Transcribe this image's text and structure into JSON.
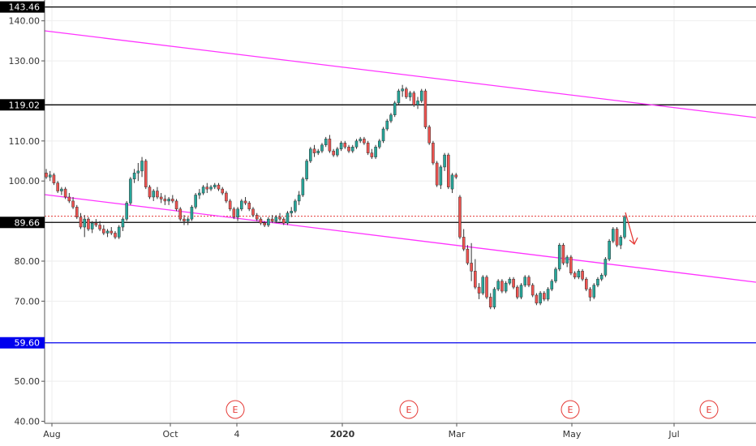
{
  "chart_data": {
    "type": "candlestick",
    "ylim": [
      39.5,
      145.2
    ],
    "yticks": [
      {
        "value": 140,
        "label": "140.00"
      },
      {
        "value": 130,
        "label": "130.00"
      },
      {
        "value": 110,
        "label": "110.00"
      },
      {
        "value": 100,
        "label": "100.00"
      },
      {
        "value": 80,
        "label": "80.00"
      },
      {
        "value": 70,
        "label": "70.00"
      },
      {
        "value": 50,
        "label": "50.00"
      },
      {
        "value": 40,
        "label": "40.00"
      }
    ],
    "xticks": [
      {
        "label": "Aug",
        "bold": false
      },
      {
        "label": "Oct",
        "bold": false
      },
      {
        "label": "4",
        "bold": false
      },
      {
        "label": "2020",
        "bold": true
      },
      {
        "label": "Mar",
        "bold": false
      },
      {
        "label": "May",
        "bold": false
      },
      {
        "label": "Jul",
        "bold": false
      }
    ],
    "horizontal_levels": [
      {
        "value": 143.46,
        "label": "143.46",
        "color": "#000000"
      },
      {
        "value": 119.02,
        "label": "119.02",
        "color": "#000000"
      },
      {
        "value": 89.66,
        "label": "89.66",
        "color": "#000000"
      },
      {
        "value": 59.6,
        "label": "59.60",
        "color": "#0000ee"
      }
    ],
    "last_price_line": {
      "value": 91.2,
      "color": "#e53935"
    },
    "colors": {
      "up": "#26a69a",
      "down": "#ef5350",
      "wick": "#333333",
      "trend": "#ff33ff",
      "earnings": "#e53935",
      "grid": "#eeeeee"
    },
    "earnings_markers": [
      "E",
      "E",
      "E",
      "E"
    ],
    "ohlc": [
      [
        102.0,
        103.0,
        100.5,
        101.0
      ],
      [
        101.0,
        102.5,
        100.0,
        101.5
      ],
      [
        101.5,
        102.0,
        99.0,
        99.5
      ],
      [
        99.5,
        100.0,
        97.0,
        97.5
      ],
      [
        97.5,
        98.5,
        96.5,
        98.0
      ],
      [
        98.0,
        98.5,
        95.5,
        96.0
      ],
      [
        96.0,
        97.0,
        94.5,
        95.0
      ],
      [
        95.0,
        96.0,
        93.0,
        93.5
      ],
      [
        93.5,
        94.0,
        90.5,
        91.0
      ],
      [
        91.0,
        92.0,
        88.0,
        88.5
      ],
      [
        88.5,
        91.5,
        86.0,
        90.5
      ],
      [
        90.5,
        91.0,
        87.5,
        88.0
      ],
      [
        88.0,
        90.0,
        87.0,
        89.5
      ],
      [
        89.5,
        90.5,
        88.5,
        89.0
      ],
      [
        89.0,
        90.0,
        87.5,
        88.0
      ],
      [
        88.0,
        89.0,
        86.5,
        87.0
      ],
      [
        87.0,
        88.0,
        86.0,
        87.5
      ],
      [
        87.5,
        88.5,
        86.5,
        87.0
      ],
      [
        87.0,
        87.5,
        85.5,
        86.0
      ],
      [
        86.0,
        89.0,
        85.5,
        88.5
      ],
      [
        88.5,
        91.0,
        87.5,
        90.5
      ],
      [
        90.5,
        95.0,
        90.0,
        94.5
      ],
      [
        94.5,
        101.0,
        94.0,
        100.5
      ],
      [
        100.5,
        103.0,
        99.5,
        102.0
      ],
      [
        102.0,
        104.5,
        100.0,
        102.5
      ],
      [
        102.5,
        106.0,
        101.0,
        105.0
      ],
      [
        105.0,
        105.5,
        98.0,
        98.5
      ],
      [
        98.5,
        99.0,
        95.5,
        96.0
      ],
      [
        96.0,
        98.0,
        95.0,
        97.5
      ],
      [
        97.5,
        98.5,
        95.5,
        96.0
      ],
      [
        96.0,
        97.0,
        94.5,
        95.5
      ],
      [
        95.5,
        96.5,
        94.0,
        95.0
      ],
      [
        95.0,
        96.0,
        94.0,
        95.5
      ],
      [
        95.5,
        96.5,
        94.5,
        95.0
      ],
      [
        95.0,
        95.5,
        92.5,
        93.0
      ],
      [
        93.0,
        93.5,
        90.0,
        90.5
      ],
      [
        90.5,
        91.5,
        89.0,
        90.0
      ],
      [
        90.0,
        91.0,
        89.0,
        90.5
      ],
      [
        90.5,
        94.0,
        90.0,
        93.5
      ],
      [
        93.5,
        97.0,
        93.0,
        96.5
      ],
      [
        96.5,
        98.0,
        95.5,
        97.0
      ],
      [
        97.0,
        99.0,
        96.5,
        98.5
      ],
      [
        98.5,
        99.5,
        97.0,
        98.0
      ],
      [
        98.0,
        99.0,
        97.5,
        98.5
      ],
      [
        98.5,
        99.5,
        98.0,
        99.0
      ],
      [
        99.0,
        99.5,
        97.5,
        98.0
      ],
      [
        98.0,
        98.5,
        96.5,
        97.0
      ],
      [
        97.0,
        97.5,
        94.5,
        95.0
      ],
      [
        95.0,
        95.5,
        92.5,
        93.0
      ],
      [
        93.0,
        93.5,
        90.5,
        91.0
      ],
      [
        91.0,
        93.5,
        90.0,
        93.0
      ],
      [
        93.0,
        95.5,
        92.5,
        95.0
      ],
      [
        95.0,
        96.0,
        94.0,
        94.5
      ],
      [
        94.5,
        95.0,
        92.5,
        93.0
      ],
      [
        93.0,
        93.5,
        91.0,
        91.5
      ],
      [
        91.5,
        92.0,
        90.0,
        90.5
      ],
      [
        90.5,
        91.0,
        89.0,
        89.5
      ],
      [
        89.5,
        90.0,
        88.5,
        89.0
      ],
      [
        89.0,
        91.0,
        88.5,
        90.5
      ],
      [
        90.5,
        91.5,
        89.5,
        90.0
      ],
      [
        90.0,
        91.5,
        89.5,
        91.0
      ],
      [
        91.0,
        92.0,
        90.0,
        90.5
      ],
      [
        90.5,
        91.0,
        89.0,
        89.5
      ],
      [
        89.5,
        92.5,
        89.0,
        92.0
      ],
      [
        92.0,
        93.5,
        91.0,
        92.5
      ],
      [
        92.5,
        95.5,
        92.0,
        95.0
      ],
      [
        95.0,
        97.5,
        94.0,
        96.5
      ],
      [
        96.5,
        101.0,
        96.0,
        100.5
      ],
      [
        100.5,
        105.5,
        100.0,
        105.0
      ],
      [
        105.0,
        108.5,
        104.5,
        108.0
      ],
      [
        108.0,
        109.0,
        106.0,
        107.0
      ],
      [
        107.0,
        108.0,
        106.5,
        107.5
      ],
      [
        107.5,
        109.5,
        107.0,
        109.0
      ],
      [
        109.0,
        111.0,
        108.5,
        110.5
      ],
      [
        110.5,
        111.5,
        107.0,
        107.5
      ],
      [
        107.5,
        108.0,
        106.0,
        106.5
      ],
      [
        106.5,
        108.5,
        106.0,
        108.0
      ],
      [
        108.0,
        110.0,
        107.5,
        109.5
      ],
      [
        109.5,
        110.0,
        108.0,
        108.5
      ],
      [
        108.5,
        109.0,
        107.0,
        107.5
      ],
      [
        107.5,
        109.0,
        107.0,
        108.5
      ],
      [
        108.5,
        110.5,
        108.0,
        110.0
      ],
      [
        110.0,
        111.0,
        109.5,
        110.5
      ],
      [
        110.5,
        111.0,
        109.0,
        109.5
      ],
      [
        109.5,
        110.0,
        106.5,
        107.0
      ],
      [
        107.0,
        108.0,
        105.5,
        106.0
      ],
      [
        106.0,
        109.0,
        105.5,
        108.5
      ],
      [
        108.5,
        110.5,
        108.0,
        110.0
      ],
      [
        110.0,
        113.5,
        109.5,
        113.0
      ],
      [
        113.0,
        115.5,
        112.5,
        115.0
      ],
      [
        115.0,
        117.0,
        114.5,
        116.5
      ],
      [
        116.5,
        120.0,
        116.0,
        119.5
      ],
      [
        119.5,
        123.0,
        119.0,
        122.5
      ],
      [
        122.5,
        124.0,
        121.0,
        123.0
      ],
      [
        123.0,
        123.5,
        120.5,
        121.0
      ],
      [
        121.0,
        122.5,
        120.0,
        122.0
      ],
      [
        122.0,
        122.5,
        118.5,
        119.0
      ],
      [
        119.0,
        121.0,
        118.0,
        120.0
      ],
      [
        120.0,
        123.0,
        119.5,
        122.5
      ],
      [
        122.5,
        123.0,
        113.0,
        113.5
      ],
      [
        113.5,
        114.0,
        109.0,
        109.5
      ],
      [
        109.5,
        110.0,
        104.0,
        104.5
      ],
      [
        104.5,
        105.0,
        98.5,
        99.0
      ],
      [
        99.0,
        104.0,
        98.0,
        103.5
      ],
      [
        103.5,
        107.0,
        102.5,
        106.5
      ],
      [
        106.5,
        107.0,
        98.0,
        98.5
      ],
      [
        98.0,
        102.0,
        97.0,
        101.5
      ],
      [
        101.5,
        102.0,
        100.5,
        101.0
      ],
      [
        96.0,
        96.5,
        85.5,
        86.0
      ],
      [
        86.0,
        88.0,
        82.5,
        83.0
      ],
      [
        83.0,
        84.0,
        79.0,
        79.5
      ],
      [
        79.5,
        84.5,
        75.0,
        77.5
      ],
      [
        77.5,
        80.5,
        73.0,
        73.5
      ],
      [
        73.5,
        74.5,
        70.5,
        72.0
      ],
      [
        72.0,
        76.5,
        71.5,
        76.0
      ],
      [
        76.0,
        76.5,
        70.5,
        71.0
      ],
      [
        71.0,
        72.0,
        68.0,
        68.5
      ],
      [
        68.5,
        73.5,
        68.0,
        73.0
      ],
      [
        73.0,
        75.5,
        72.5,
        75.0
      ],
      [
        75.0,
        75.5,
        72.0,
        72.5
      ],
      [
        72.5,
        75.0,
        72.0,
        74.5
      ],
      [
        74.5,
        76.0,
        74.0,
        75.5
      ],
      [
        75.5,
        76.0,
        73.0,
        73.5
      ],
      [
        73.5,
        74.0,
        70.5,
        71.0
      ],
      [
        71.0,
        74.5,
        70.5,
        74.0
      ],
      [
        74.0,
        76.5,
        73.5,
        76.0
      ],
      [
        76.0,
        76.5,
        73.5,
        74.0
      ],
      [
        74.0,
        74.5,
        71.0,
        71.5
      ],
      [
        71.5,
        72.0,
        69.0,
        69.5
      ],
      [
        69.5,
        72.5,
        69.0,
        72.0
      ],
      [
        72.0,
        72.5,
        70.0,
        70.5
      ],
      [
        70.5,
        73.5,
        70.0,
        73.0
      ],
      [
        73.0,
        75.5,
        72.5,
        75.0
      ],
      [
        75.0,
        78.5,
        74.5,
        78.0
      ],
      [
        78.0,
        84.5,
        77.5,
        84.0
      ],
      [
        84.0,
        84.5,
        79.0,
        79.5
      ],
      [
        79.5,
        81.5,
        78.5,
        81.0
      ],
      [
        81.0,
        81.5,
        76.5,
        77.0
      ],
      [
        77.0,
        77.5,
        75.5,
        76.0
      ],
      [
        76.0,
        78.0,
        75.5,
        77.5
      ],
      [
        77.5,
        78.0,
        75.0,
        75.5
      ],
      [
        75.5,
        76.0,
        72.5,
        73.0
      ],
      [
        73.0,
        73.5,
        70.0,
        71.0
      ],
      [
        71.0,
        74.5,
        70.5,
        74.0
      ],
      [
        74.0,
        76.0,
        73.5,
        75.5
      ],
      [
        75.5,
        77.0,
        75.0,
        76.5
      ],
      [
        76.5,
        81.0,
        76.0,
        80.5
      ],
      [
        80.5,
        85.5,
        80.0,
        85.0
      ],
      [
        85.0,
        88.5,
        84.5,
        88.0
      ],
      [
        88.0,
        88.5,
        83.5,
        84.0
      ],
      [
        84.0,
        86.5,
        83.0,
        86.0
      ],
      [
        86.0,
        91.5,
        85.5,
        91.0
      ]
    ]
  }
}
